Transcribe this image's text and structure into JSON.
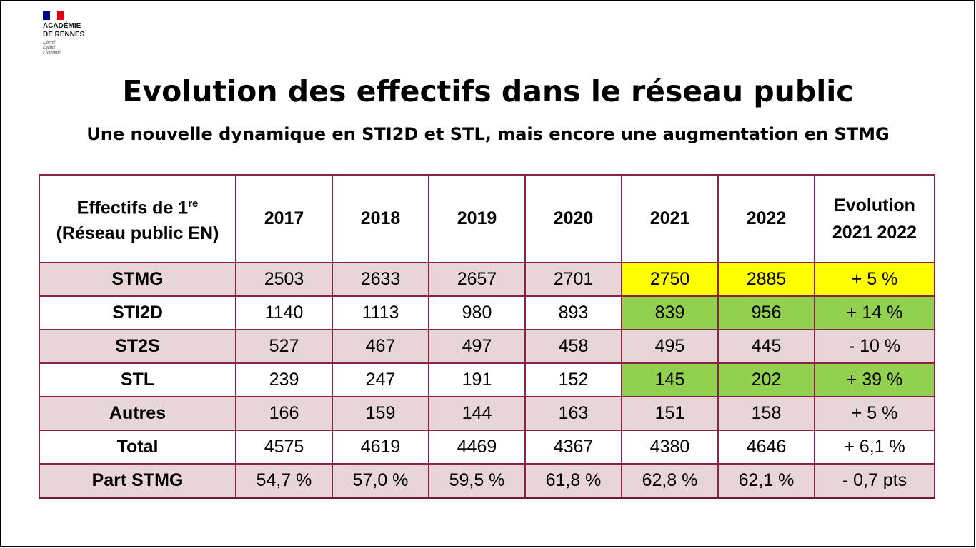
{
  "logo": {
    "line1": "ACADÉMIE",
    "line2": "DE RENNES",
    "motto": [
      "Liberté",
      "Égalité",
      "Fraternité"
    ]
  },
  "title": "Evolution des effectifs dans le réseau public",
  "subtitle": "Une nouvelle dynamique en STI2D et STL, mais encore une augmentation en STMG",
  "table": {
    "header": {
      "label_line1": "Effectifs de 1",
      "label_sup": "re",
      "label_line2": "(Réseau public EN)",
      "years": [
        "2017",
        "2018",
        "2019",
        "2020",
        "2021",
        "2022"
      ],
      "evolution_line1": "Evolution",
      "evolution_line2": "2021 2022"
    },
    "rows": [
      {
        "label": "STMG",
        "values": [
          "2503",
          "2633",
          "2657",
          "2701",
          "2750",
          "2885"
        ],
        "evolution": "+ 5 %",
        "highlight": "yellow"
      },
      {
        "label": "STI2D",
        "values": [
          "1140",
          "1113",
          "980",
          "893",
          "839",
          "956"
        ],
        "evolution": "+ 14 %",
        "highlight": "green"
      },
      {
        "label": "ST2S",
        "values": [
          "527",
          "467",
          "497",
          "458",
          "495",
          "445"
        ],
        "evolution": "- 10 %",
        "highlight": "none"
      },
      {
        "label": "STL",
        "values": [
          "239",
          "247",
          "191",
          "152",
          "145",
          "202"
        ],
        "evolution": "+ 39 %",
        "highlight": "green"
      },
      {
        "label": "Autres",
        "values": [
          "166",
          "159",
          "144",
          "163",
          "151",
          "158"
        ],
        "evolution": "+ 5 %",
        "highlight": "none"
      },
      {
        "label": "Total",
        "values": [
          "4575",
          "4619",
          "4469",
          "4367",
          "4380",
          "4646"
        ],
        "evolution": "+ 6,1 %",
        "highlight": "none"
      },
      {
        "label": "Part STMG",
        "values": [
          "54,7 %",
          "57,0 %",
          "59,5 %",
          "61,8 %",
          "62,8 %",
          "62,1 %"
        ],
        "evolution": "- 0,7 pts",
        "highlight": "none"
      }
    ]
  },
  "colors": {
    "border": "#8b2346",
    "row_tint": "#e8d5d8",
    "highlight_yellow": "#ffff00",
    "highlight_green": "#92d050",
    "flag_blue": "#000091",
    "flag_red": "#e1000f"
  }
}
